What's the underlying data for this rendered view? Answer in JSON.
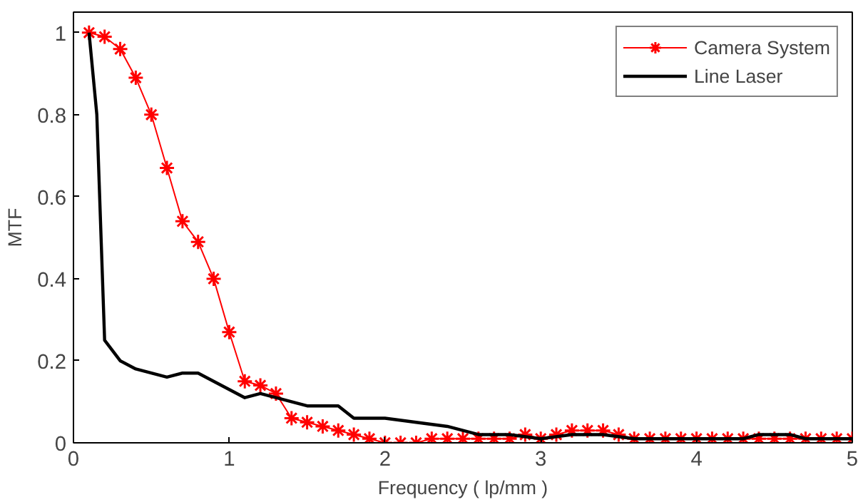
{
  "chart_data": {
    "type": "line",
    "xlabel": "Frequency ( lp/mm )",
    "ylabel": "MTF",
    "xlim": [
      0,
      5
    ],
    "ylim": [
      0,
      1.05
    ],
    "xticks": [
      0,
      1,
      2,
      3,
      4,
      5
    ],
    "yticks": [
      0,
      0.2,
      0.4,
      0.6,
      0.8,
      1
    ],
    "grid": false,
    "legend": "top right",
    "series": [
      {
        "name": "Camera System",
        "color": "#ff0000",
        "marker": "cross",
        "x": [
          0.1,
          0.2,
          0.3,
          0.4,
          0.5,
          0.6,
          0.7,
          0.8,
          0.9,
          1.0,
          1.1,
          1.2,
          1.3,
          1.4,
          1.5,
          1.6,
          1.7,
          1.8,
          1.9,
          2.0,
          2.1,
          2.2,
          2.3,
          2.4,
          2.5,
          2.6,
          2.7,
          2.8,
          2.9,
          3.0,
          3.1,
          3.2,
          3.3,
          3.4,
          3.5,
          3.6,
          3.7,
          3.8,
          3.9,
          4.0,
          4.1,
          4.2,
          4.3,
          4.4,
          4.5,
          4.6,
          4.7,
          4.8,
          4.9,
          5.0
        ],
        "values": [
          1.0,
          0.99,
          0.96,
          0.89,
          0.8,
          0.67,
          0.54,
          0.49,
          0.4,
          0.27,
          0.15,
          0.14,
          0.12,
          0.06,
          0.05,
          0.04,
          0.03,
          0.02,
          0.01,
          0.0,
          0.0,
          0.0,
          0.01,
          0.01,
          0.01,
          0.01,
          0.01,
          0.01,
          0.02,
          0.01,
          0.02,
          0.03,
          0.03,
          0.03,
          0.02,
          0.01,
          0.01,
          0.01,
          0.01,
          0.01,
          0.01,
          0.01,
          0.01,
          0.01,
          0.01,
          0.01,
          0.01,
          0.01,
          0.01,
          0.01
        ]
      },
      {
        "name": "Line Laser",
        "color": "#000000",
        "marker": "none",
        "x": [
          0.1,
          0.15,
          0.2,
          0.3,
          0.4,
          0.5,
          0.6,
          0.7,
          0.8,
          0.9,
          1.0,
          1.1,
          1.2,
          1.3,
          1.4,
          1.5,
          1.7,
          1.8,
          2.0,
          2.2,
          2.4,
          2.6,
          2.8,
          3.0,
          3.2,
          3.4,
          3.6,
          4.0,
          4.3,
          4.4,
          4.6,
          4.7,
          5.0
        ],
        "values": [
          1.0,
          0.8,
          0.25,
          0.2,
          0.18,
          0.17,
          0.16,
          0.17,
          0.17,
          0.15,
          0.13,
          0.11,
          0.12,
          0.11,
          0.1,
          0.09,
          0.09,
          0.06,
          0.06,
          0.05,
          0.04,
          0.02,
          0.02,
          0.01,
          0.02,
          0.02,
          0.01,
          0.01,
          0.01,
          0.02,
          0.02,
          0.01,
          0.01
        ]
      }
    ]
  }
}
